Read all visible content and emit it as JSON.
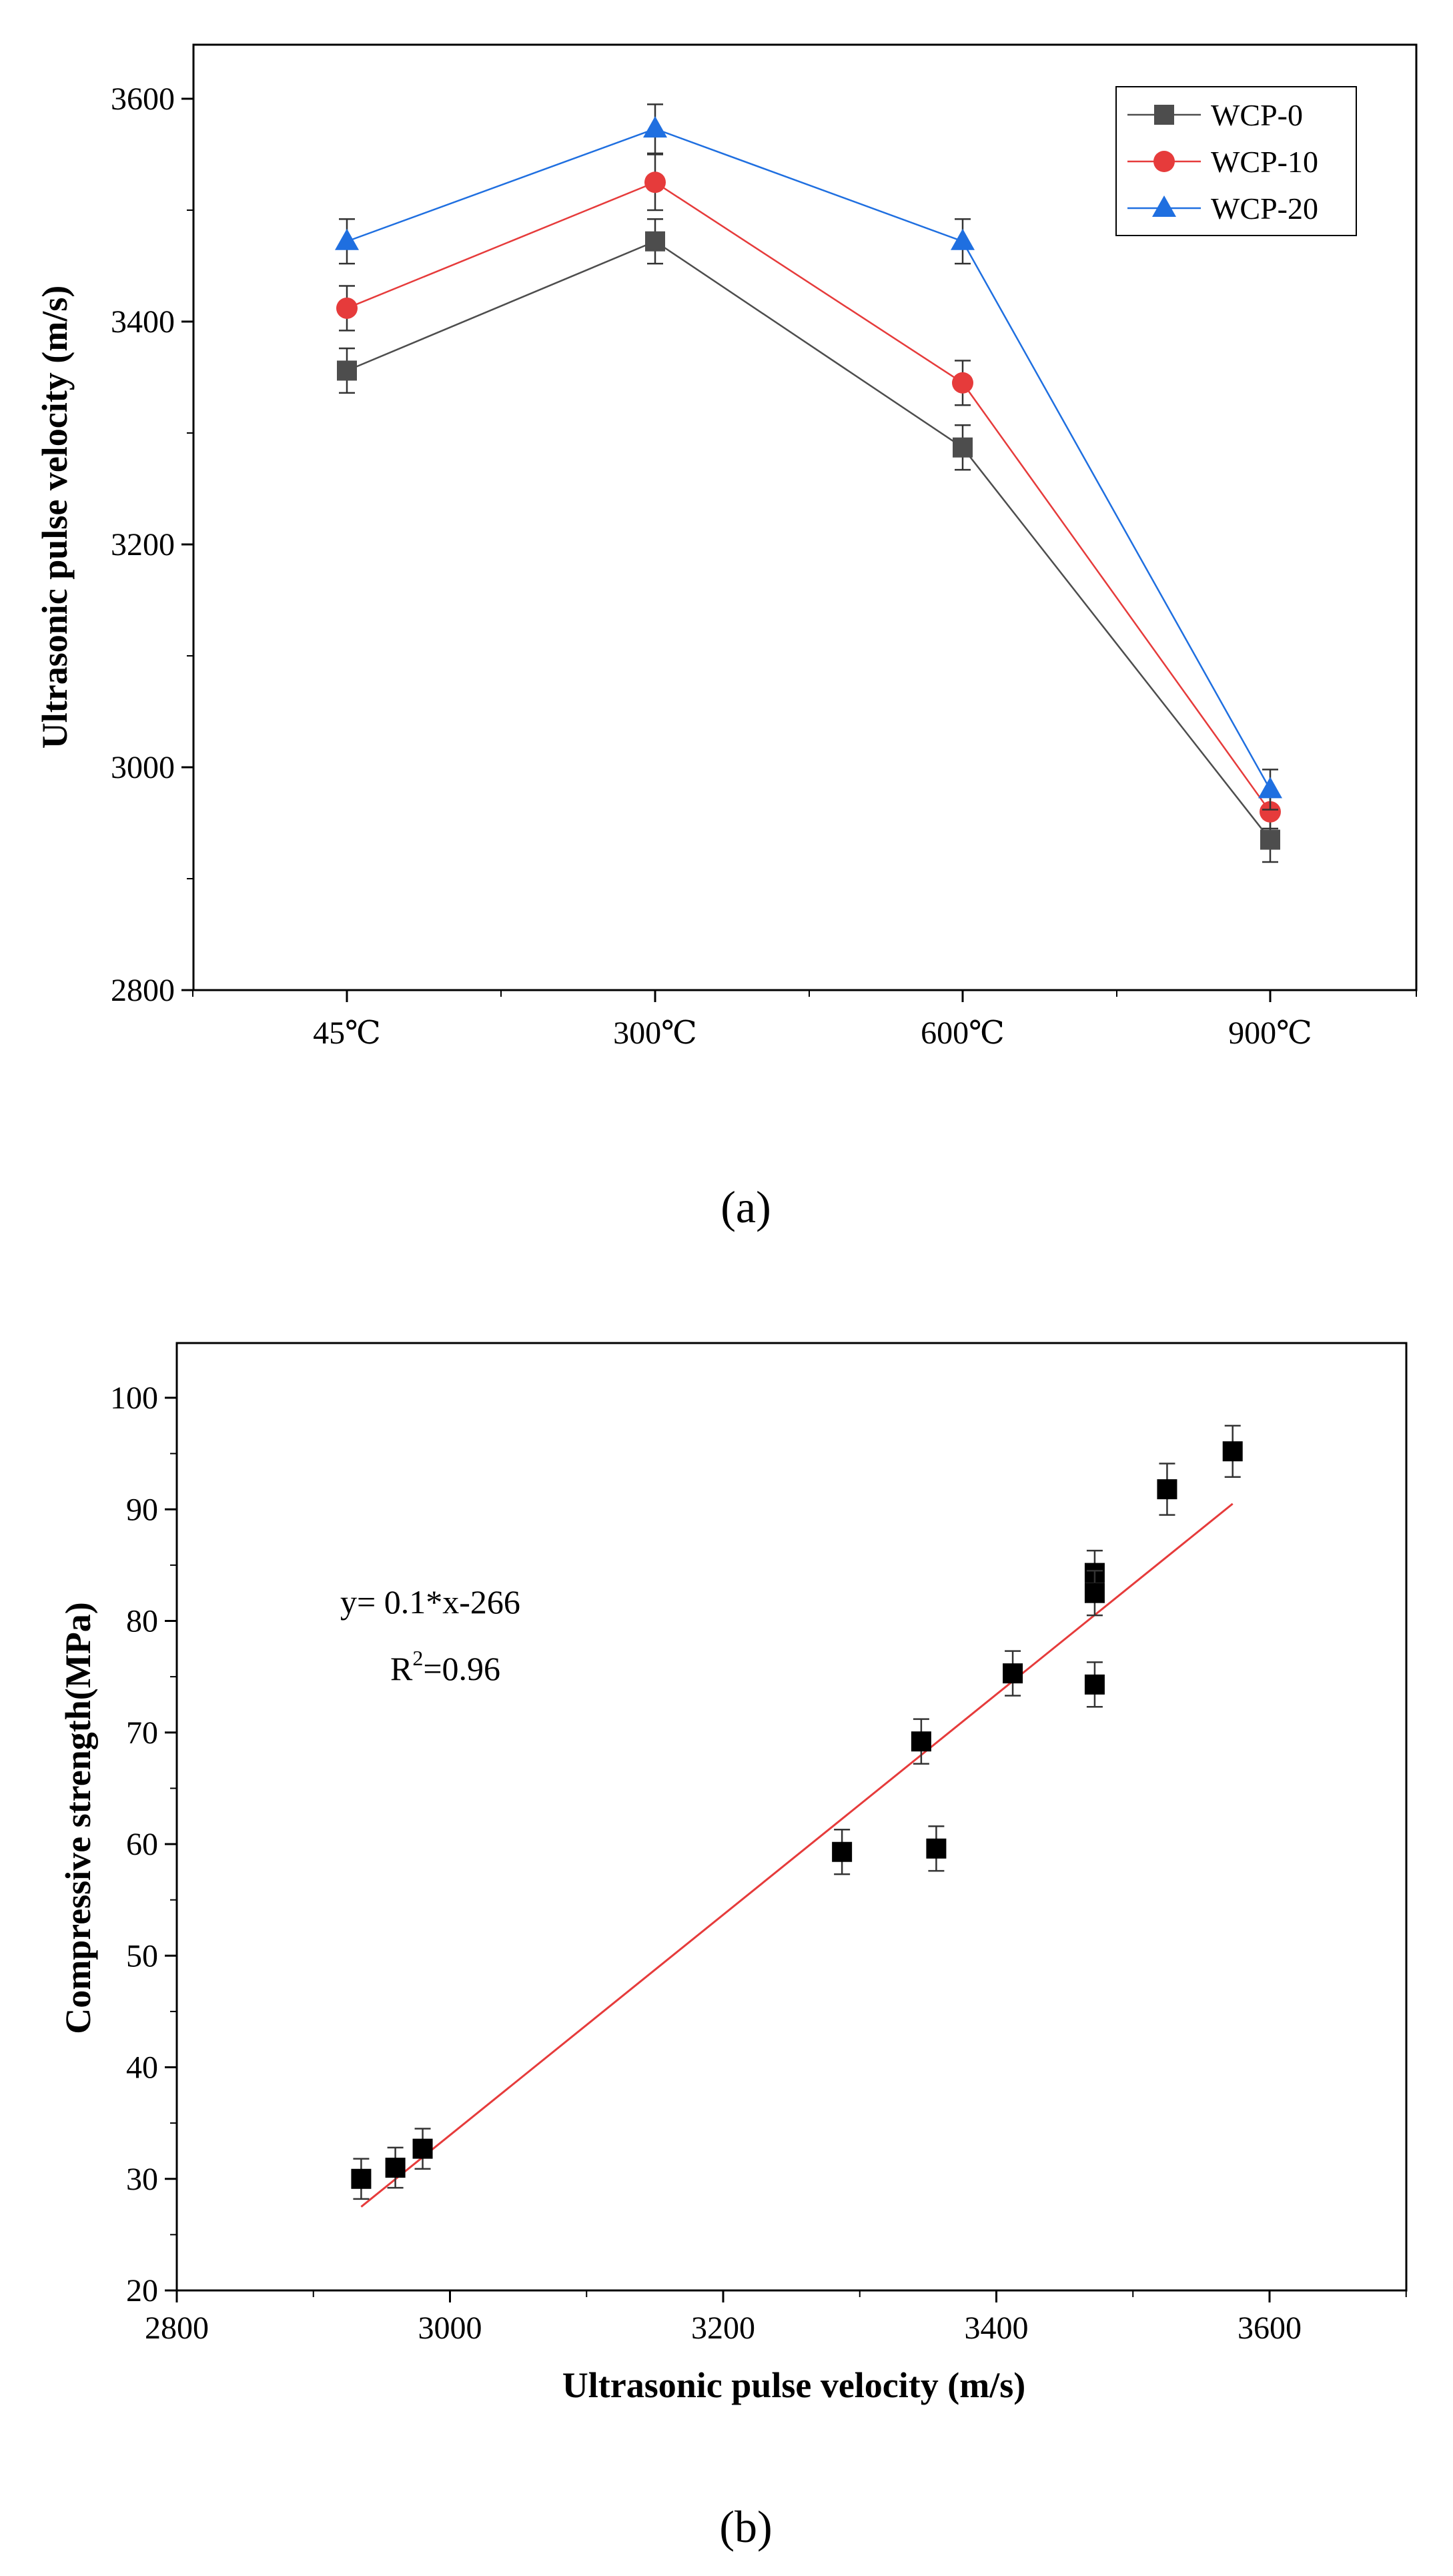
{
  "figure": {
    "caption_a": "(a)",
    "caption_b": "(b)"
  },
  "chart_data": [
    {
      "type": "line",
      "panel": "a",
      "categories": [
        "45℃",
        "300℃",
        "600℃",
        "900℃"
      ],
      "ylabel": "Ultrasonic pulse velocity (m/s)",
      "xlabel": "",
      "ylim": [
        2800,
        3650
      ],
      "yticks": [
        2800,
        3000,
        3200,
        3400,
        3600
      ],
      "legend_position": "top-right",
      "series": [
        {
          "name": "WCP-0",
          "color": "#4d4d4d",
          "marker": "square",
          "values": [
            3356,
            3472,
            3287,
            2935
          ],
          "errors": [
            20,
            20,
            20,
            20
          ]
        },
        {
          "name": "WCP-10",
          "color": "#e63b3b",
          "marker": "circle",
          "values": [
            3412,
            3525,
            3345,
            2960
          ],
          "errors": [
            20,
            25,
            20,
            15
          ]
        },
        {
          "name": "WCP-20",
          "color": "#1f6fe0",
          "marker": "triangle",
          "values": [
            3472,
            3573,
            3472,
            2980
          ],
          "errors": [
            20,
            22,
            20,
            18
          ]
        }
      ]
    },
    {
      "type": "scatter",
      "panel": "b",
      "title": "",
      "xlabel": "Ultrasonic pulse velocity (m/s)",
      "ylabel": "Compressive strength(MPa)",
      "xlim": [
        2800,
        3700
      ],
      "ylim": [
        20,
        105
      ],
      "xticks": [
        2800,
        3000,
        3200,
        3400,
        3600
      ],
      "yticks": [
        20,
        30,
        40,
        50,
        60,
        70,
        80,
        90,
        100
      ],
      "equation": "y= 0.1*x-266",
      "r2_prefix": "R",
      "r2_exponent": "2",
      "r2_value": "=0.96",
      "fit_line": {
        "slope": 0.1,
        "intercept": -266,
        "x_range": [
          2935,
          3573
        ],
        "y_range": [
          27.5,
          90.5
        ],
        "color": "#e63b3b"
      },
      "points": [
        {
          "x": 2935,
          "y": 30.0,
          "err": 1.8
        },
        {
          "x": 2960,
          "y": 31.0,
          "err": 1.8
        },
        {
          "x": 2980,
          "y": 32.7,
          "err": 1.8
        },
        {
          "x": 3287,
          "y": 59.3,
          "err": 2.0
        },
        {
          "x": 3345,
          "y": 69.2,
          "err": 2.0
        },
        {
          "x": 3356,
          "y": 59.6,
          "err": 2.0
        },
        {
          "x": 3412,
          "y": 75.3,
          "err": 2.0
        },
        {
          "x": 3472,
          "y": 84.3,
          "err": 2.0
        },
        {
          "x": 3472,
          "y": 82.5,
          "err": 2.0
        },
        {
          "x": 3472,
          "y": 74.3,
          "err": 2.0
        },
        {
          "x": 3525,
          "y": 91.8,
          "err": 2.3
        },
        {
          "x": 3573,
          "y": 95.2,
          "err": 2.3
        }
      ]
    }
  ]
}
